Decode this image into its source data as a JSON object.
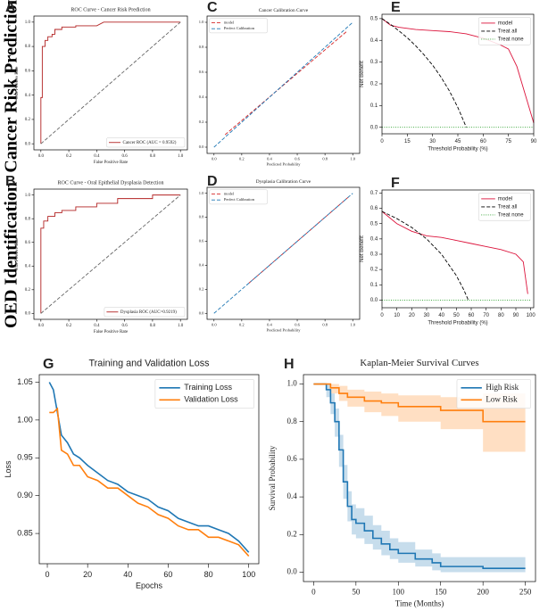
{
  "row_labels": [
    "Cancer Risk Prediction",
    "OED Identification"
  ],
  "chart_data": [
    {
      "panel": "A",
      "type": "line",
      "title": "ROC Curve - Cancer Risk Prediction",
      "xlabel": "False Positive Rate",
      "ylabel": "True Positive Rate",
      "xlim": [
        -0.05,
        1.05
      ],
      "ylim": [
        -0.05,
        1.05
      ],
      "xticks": [
        {
          "value": 0,
          "label": "0.0"
        },
        0.2,
        0.4,
        0.6,
        0.8,
        {
          "value": 1,
          "label": "1.0"
        }
      ],
      "yticks": [
        {
          "value": 0,
          "label": "0.0"
        },
        0.2,
        0.4,
        0.6,
        0.8,
        {
          "value": 1,
          "label": "1.0"
        }
      ],
      "legend": "lower right",
      "series": [
        {
          "name": "Cancer ROC (AUC = 0.9592)",
          "color": "#b22222",
          "dash": "solid",
          "x": [
            0,
            0,
            0.01,
            0.01,
            0.03,
            0.03,
            0.05,
            0.05,
            0.08,
            0.08,
            0.1,
            0.1,
            0.15,
            0.15,
            0.25,
            0.25,
            0.4,
            0.45,
            1
          ],
          "values": [
            0,
            0.38,
            0.38,
            0.8,
            0.8,
            0.85,
            0.85,
            0.88,
            0.88,
            0.9,
            0.9,
            0.94,
            0.94,
            0.96,
            0.96,
            0.97,
            0.97,
            1,
            1
          ]
        },
        {
          "color": "#666666",
          "dash": "dashed",
          "x": [
            0,
            1
          ],
          "values": [
            0,
            1
          ]
        }
      ]
    },
    {
      "panel": "B",
      "type": "line",
      "title": "ROC Curve - Oral Epithelial Dysplasia Detection",
      "xlabel": "False Positive Rate",
      "ylabel": "True Positive Rate",
      "xlim": [
        -0.05,
        1.05
      ],
      "ylim": [
        -0.05,
        1.05
      ],
      "xticks": [
        {
          "value": 0,
          "label": "0.0"
        },
        0.2,
        0.4,
        0.6,
        0.8,
        {
          "value": 1,
          "label": "1.0"
        }
      ],
      "yticks": [
        {
          "value": 0,
          "label": "0.0"
        },
        0.2,
        0.4,
        0.6,
        0.8,
        {
          "value": 1,
          "label": "1.0"
        }
      ],
      "legend": "lower right",
      "series": [
        {
          "name": "Dysplasia ROC (AUC=0.9219)",
          "color": "#b22222",
          "dash": "solid",
          "x": [
            0,
            0,
            0.02,
            0.02,
            0.05,
            0.05,
            0.1,
            0.1,
            0.15,
            0.15,
            0.25,
            0.25,
            0.4,
            0.4,
            0.55,
            0.55,
            0.8,
            0.8,
            1
          ],
          "values": [
            0,
            0.72,
            0.72,
            0.78,
            0.78,
            0.82,
            0.82,
            0.85,
            0.85,
            0.87,
            0.87,
            0.9,
            0.9,
            0.93,
            0.93,
            0.97,
            0.97,
            1,
            1
          ]
        },
        {
          "color": "#666666",
          "dash": "dashed",
          "x": [
            0,
            1
          ],
          "values": [
            0,
            1
          ]
        }
      ]
    },
    {
      "panel": "C",
      "type": "line",
      "title": "Cancer Calibration Curve",
      "xlabel": "Predicted Probability",
      "xlim": [
        -0.05,
        1.05
      ],
      "ylim": [
        -0.05,
        1.05
      ],
      "xticks": [
        {
          "value": 0,
          "label": "0.0"
        },
        0.2,
        0.4,
        0.6,
        0.8,
        {
          "value": 1,
          "label": "1.0"
        }
      ],
      "yticks": [
        {
          "value": 0,
          "label": "0.0"
        },
        0.2,
        0.4,
        0.6,
        0.8,
        {
          "value": 1,
          "label": "1.0"
        }
      ],
      "legend": "upper left",
      "series": [
        {
          "name": "model",
          "color": "#d62728",
          "dash": "dashed",
          "x": [
            0.08,
            0.96
          ],
          "values": [
            0.1,
            0.93
          ]
        },
        {
          "name": "Perfect Calibration",
          "color": "#1f77b4",
          "dash": "dashed",
          "x": [
            0,
            1
          ],
          "values": [
            0,
            1
          ]
        }
      ]
    },
    {
      "panel": "D",
      "type": "line",
      "title": "Dysplasia Calibration Curve",
      "xlabel": "Predicted Probability",
      "xlim": [
        -0.05,
        1.05
      ],
      "ylim": [
        -0.05,
        1.05
      ],
      "xticks": [
        {
          "value": 0,
          "label": "0.0"
        },
        0.2,
        0.4,
        0.6,
        0.8,
        {
          "value": 1,
          "label": "1.0"
        }
      ],
      "yticks": [
        {
          "value": 0,
          "label": "0.0"
        },
        0.2,
        0.4,
        0.6,
        0.8,
        {
          "value": 1,
          "label": "1.0"
        }
      ],
      "legend": "upper left",
      "series": [
        {
          "name": "model",
          "color": "#d62728",
          "dash": "dashed",
          "x": [
            0.25,
            0.98
          ],
          "values": [
            0.25,
            0.98
          ]
        },
        {
          "name": "Perfect Calibration",
          "color": "#1f77b4",
          "dash": "dashed",
          "x": [
            0,
            1
          ],
          "values": [
            0,
            1
          ]
        }
      ]
    },
    {
      "panel": "E",
      "type": "line",
      "xlabel": "Threshold Probability (%)",
      "ylabel": "Net Benefit",
      "xlim": [
        0,
        90
      ],
      "ylim": [
        -0.03,
        0.52
      ],
      "xticks": [
        0,
        15,
        30,
        45,
        60,
        75,
        90
      ],
      "yticks": [
        {
          "value": 0,
          "label": "0.0"
        },
        0.1,
        0.2,
        0.3,
        0.4,
        0.5
      ],
      "legend": "upper right",
      "series": [
        {
          "name": "model",
          "color": "#dc143c",
          "dash": "solid",
          "x": [
            0,
            5,
            10,
            20,
            30,
            40,
            50,
            60,
            70,
            75,
            80,
            85,
            90
          ],
          "values": [
            0.5,
            0.47,
            0.46,
            0.45,
            0.445,
            0.44,
            0.43,
            0.41,
            0.38,
            0.36,
            0.28,
            0.15,
            0.02
          ]
        },
        {
          "name": "Treat all",
          "color": "#000000",
          "dash": "dashed",
          "x": [
            0,
            5,
            10,
            15,
            20,
            25,
            30,
            35,
            40,
            45,
            50
          ],
          "values": [
            0.5,
            0.474,
            0.444,
            0.412,
            0.375,
            0.333,
            0.286,
            0.231,
            0.167,
            0.091,
            0
          ]
        },
        {
          "name": "Treat none",
          "color": "#2ca02c",
          "dash": "dotted",
          "x": [
            0,
            90
          ],
          "values": [
            0,
            0
          ]
        }
      ]
    },
    {
      "panel": "F",
      "type": "line",
      "xlabel": "Threshold Probability (%)",
      "ylabel": "Net Benefit",
      "xlim": [
        0,
        102
      ],
      "ylim": [
        -0.05,
        0.72
      ],
      "xticks": [
        0,
        10,
        20,
        30,
        40,
        50,
        60,
        70,
        80,
        90,
        100
      ],
      "yticks": [
        {
          "value": 0,
          "label": "0.0"
        },
        0.1,
        0.2,
        0.3,
        0.4,
        0.5,
        0.6,
        0.7
      ],
      "legend": "upper right",
      "series": [
        {
          "name": "model",
          "color": "#dc143c",
          "dash": "solid",
          "x": [
            0,
            10,
            20,
            30,
            40,
            50,
            60,
            70,
            80,
            90,
            95,
            98
          ],
          "values": [
            0.58,
            0.5,
            0.45,
            0.42,
            0.41,
            0.39,
            0.37,
            0.35,
            0.33,
            0.3,
            0.25,
            0.04
          ]
        },
        {
          "name": "Treat all",
          "color": "#000000",
          "dash": "dashed",
          "x": [
            0,
            10,
            20,
            30,
            40,
            50,
            55,
            58
          ],
          "values": [
            0.58,
            0.533,
            0.475,
            0.4,
            0.3,
            0.16,
            0.067,
            0
          ]
        },
        {
          "name": "Treat none",
          "color": "#2ca02c",
          "dash": "dotted",
          "x": [
            0,
            100
          ],
          "values": [
            0,
            0
          ]
        }
      ]
    },
    {
      "panel": "G",
      "type": "line",
      "title": "Training and Validation Loss",
      "xlabel": "Epochs",
      "ylabel": "Loss",
      "xlim": [
        -4,
        105
      ],
      "ylim": [
        0.81,
        1.06
      ],
      "xticks": [
        0,
        20,
        40,
        60,
        80,
        100
      ],
      "yticks": [
        0.85,
        {
          "value": 0.9,
          "label": "0.90"
        },
        0.95,
        {
          "value": 1,
          "label": "1.00"
        },
        1.05
      ],
      "legend": "upper right",
      "series": [
        {
          "name": "Training Loss",
          "color": "#1f77b4",
          "dash": "solid",
          "x": [
            1,
            3,
            5,
            7,
            10,
            13,
            16,
            20,
            25,
            30,
            35,
            40,
            45,
            50,
            55,
            60,
            65,
            70,
            75,
            80,
            85,
            90,
            95,
            100
          ],
          "values": [
            1.05,
            1.04,
            1.01,
            0.98,
            0.97,
            0.955,
            0.95,
            0.94,
            0.93,
            0.92,
            0.915,
            0.905,
            0.9,
            0.895,
            0.885,
            0.88,
            0.87,
            0.865,
            0.86,
            0.86,
            0.855,
            0.85,
            0.84,
            0.825
          ]
        },
        {
          "name": "Validation Loss",
          "color": "#ff7f0e",
          "dash": "solid",
          "x": [
            1,
            3,
            5,
            7,
            10,
            13,
            16,
            20,
            25,
            30,
            35,
            40,
            45,
            50,
            55,
            60,
            65,
            70,
            75,
            80,
            85,
            90,
            95,
            100
          ],
          "values": [
            1.01,
            1.01,
            1.015,
            0.96,
            0.955,
            0.94,
            0.94,
            0.925,
            0.92,
            0.91,
            0.91,
            0.9,
            0.89,
            0.885,
            0.875,
            0.87,
            0.86,
            0.855,
            0.855,
            0.845,
            0.845,
            0.84,
            0.835,
            0.82
          ]
        }
      ]
    },
    {
      "panel": "H",
      "type": "step",
      "title": "Kaplan-Meier Survival Curves",
      "xlabel": "Time (Months)",
      "ylabel": "Survival Probability",
      "xlim": [
        -12,
        262
      ],
      "ylim": [
        -0.05,
        1.05
      ],
      "xticks": [
        0,
        50,
        100,
        150,
        200,
        250
      ],
      "yticks": [
        {
          "value": 0,
          "label": "0.0"
        },
        0.2,
        0.4,
        0.6,
        0.8,
        {
          "value": 1,
          "label": "1.0"
        }
      ],
      "legend": "upper right",
      "series": [
        {
          "name": "High Risk",
          "color": "#1f77b4",
          "dash": "solid",
          "x": [
            0,
            10,
            15,
            20,
            25,
            30,
            35,
            40,
            45,
            50,
            60,
            70,
            80,
            90,
            100,
            120,
            140,
            150,
            200,
            250
          ],
          "values": [
            1,
            1,
            0.97,
            0.9,
            0.8,
            0.65,
            0.48,
            0.35,
            0.28,
            0.26,
            0.22,
            0.18,
            0.15,
            0.12,
            0.1,
            0.07,
            0.05,
            0.03,
            0.02,
            0.02
          ],
          "lower": [
            1,
            1,
            0.93,
            0.84,
            0.72,
            0.56,
            0.39,
            0.27,
            0.2,
            0.18,
            0.15,
            0.12,
            0.09,
            0.07,
            0.05,
            0.03,
            0.01,
            0,
            0,
            0
          ],
          "upper": [
            1,
            1,
            1,
            0.95,
            0.87,
            0.73,
            0.57,
            0.43,
            0.36,
            0.34,
            0.3,
            0.25,
            0.22,
            0.18,
            0.16,
            0.12,
            0.1,
            0.08,
            0.08,
            0.08
          ]
        },
        {
          "name": "Low Risk",
          "color": "#ff7f0e",
          "dash": "solid",
          "x": [
            0,
            15,
            20,
            30,
            40,
            60,
            80,
            100,
            150,
            200,
            250
          ],
          "values": [
            1,
            1,
            0.98,
            0.95,
            0.93,
            0.91,
            0.9,
            0.88,
            0.86,
            0.8,
            0.8
          ],
          "lower": [
            1,
            1,
            0.95,
            0.91,
            0.88,
            0.85,
            0.83,
            0.8,
            0.76,
            0.64,
            0.64
          ],
          "upper": [
            1,
            1,
            1,
            0.99,
            0.97,
            0.96,
            0.95,
            0.94,
            0.93,
            0.95,
            0.95
          ]
        }
      ]
    }
  ]
}
